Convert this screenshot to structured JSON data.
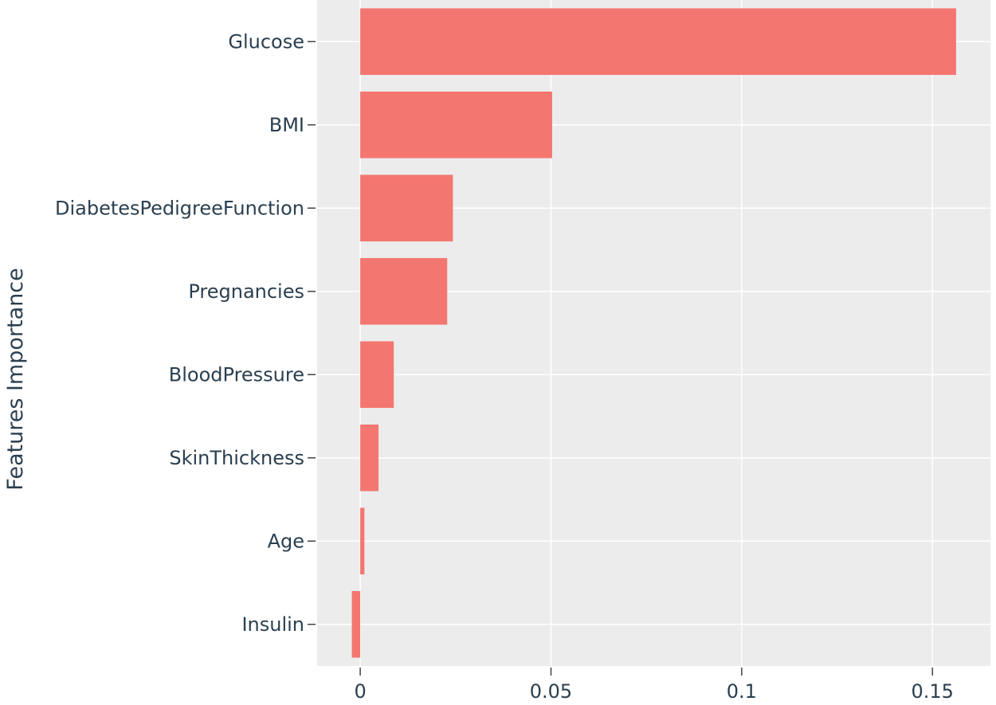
{
  "chart_data": {
    "type": "bar",
    "orientation": "horizontal",
    "title": "",
    "xlabel": "",
    "ylabel": "Features Importance",
    "categories": [
      "Glucose",
      "BMI",
      "DiabetesPedigreeFunction",
      "Pregnancies",
      "BloodPressure",
      "SkinThickness",
      "Age",
      "Insulin"
    ],
    "values": [
      0.1562,
      0.0503,
      0.0243,
      0.0228,
      0.0088,
      0.0048,
      0.0011,
      -0.0022
    ],
    "xlim": [
      -0.0113,
      0.1652
    ],
    "x_ticks": [
      0,
      0.05,
      0.1,
      0.15
    ],
    "x_tick_labels": [
      "0",
      "0.05",
      "0.1",
      "0.15"
    ],
    "grid": true,
    "legend": "none",
    "colors": {
      "bar": "#f47670",
      "plot_background": "#ececec",
      "grid": "#ffffff",
      "text": "#2a3f4f"
    }
  }
}
